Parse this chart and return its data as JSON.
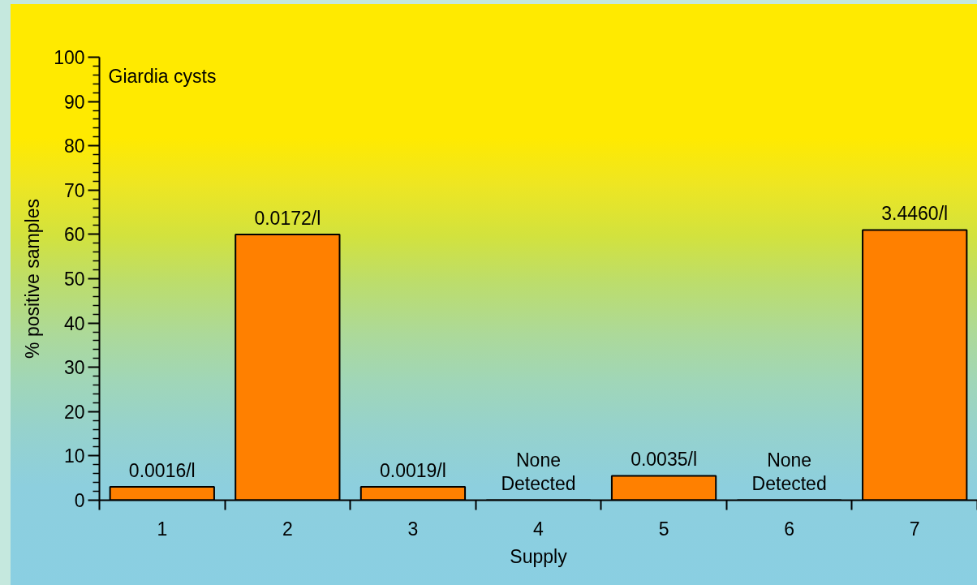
{
  "chart_data": {
    "type": "bar",
    "xlabel": "Supply",
    "ylabel": "% positive samples",
    "annotations": [
      "Giardia cysts",
      {
        "text": "0.0016/l",
        "x": "1",
        "y": 3
      },
      {
        "text": "0.0172/l",
        "x": "2",
        "y": 60
      },
      {
        "text": "0.0019/l",
        "x": "3",
        "y": 3
      },
      {
        "text": "None\nDetected",
        "x": "4",
        "y": 0
      },
      {
        "text": "0.0035/l",
        "x": "5",
        "y": 5.5
      },
      {
        "text": "None\nDetected",
        "x": "6",
        "y": 0
      },
      {
        "text": "3.4460/l",
        "x": "7",
        "y": 61
      }
    ],
    "categories": [
      "1",
      "2",
      "3",
      "4",
      "5",
      "6",
      "7"
    ],
    "values": [
      3,
      60,
      3,
      0,
      5.5,
      0,
      61
    ],
    "color": "#ff8000",
    "ylim": [
      0,
      100
    ],
    "yticks": [
      0,
      {
        "value": 2,
        "label": null
      },
      {
        "value": 4,
        "label": null
      },
      {
        "value": 6,
        "label": null
      },
      {
        "value": 8,
        "label": null
      },
      10,
      {
        "value": 12,
        "label": null
      },
      {
        "value": 14,
        "label": null
      },
      {
        "value": 16,
        "label": null
      },
      {
        "value": 18,
        "label": null
      },
      20,
      {
        "value": 22,
        "label": null
      },
      {
        "value": 24,
        "label": null
      },
      {
        "value": 26,
        "label": null
      },
      {
        "value": 28,
        "label": null
      },
      30,
      {
        "value": 32,
        "label": null
      },
      {
        "value": 34,
        "label": null
      },
      {
        "value": 36,
        "label": null
      },
      {
        "value": 38,
        "label": null
      },
      40,
      {
        "value": 42,
        "label": null
      },
      {
        "value": 44,
        "label": null
      },
      {
        "value": 46,
        "label": null
      },
      {
        "value": 48,
        "label": null
      },
      50,
      {
        "value": 52,
        "label": null
      },
      {
        "value": 54,
        "label": null
      },
      {
        "value": 56,
        "label": null
      },
      {
        "value": 58,
        "label": null
      },
      60,
      {
        "value": 62,
        "label": null
      },
      {
        "value": 64,
        "label": null
      },
      {
        "value": 66,
        "label": null
      },
      {
        "value": 68,
        "label": null
      },
      70,
      {
        "value": 72,
        "label": null
      },
      {
        "value": 74,
        "label": null
      },
      {
        "value": 76,
        "label": null
      },
      {
        "value": 78,
        "label": null
      },
      80,
      {
        "value": 82,
        "label": null
      },
      {
        "value": 84,
        "label": null
      },
      {
        "value": 86,
        "label": null
      },
      {
        "value": 88,
        "label": null
      },
      90,
      {
        "value": 92,
        "label": null
      },
      {
        "value": 94,
        "label": null
      },
      {
        "value": 96,
        "label": null
      },
      {
        "value": 98,
        "label": null
      },
      100
    ],
    "grid": false
  }
}
